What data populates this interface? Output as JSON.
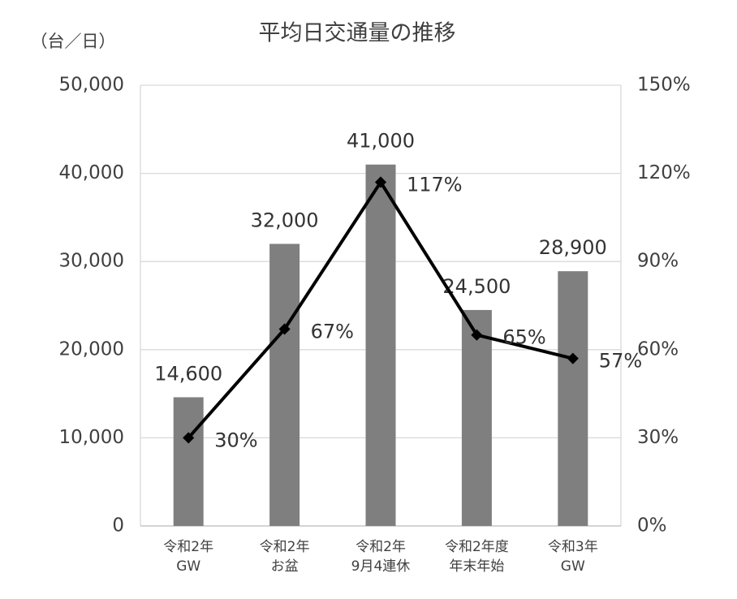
{
  "chart_data": {
    "type": "bar",
    "title": "平均日交通量の推移",
    "y_label": "（台／日）",
    "categories": [
      [
        "令和2年",
        "GW"
      ],
      [
        "令和2年",
        "お盆"
      ],
      [
        "令和2年",
        "9月4連休"
      ],
      [
        "令和2年度",
        "年末年始"
      ],
      [
        "令和3年",
        "GW"
      ]
    ],
    "series": [
      {
        "type": "bar",
        "color": "#7f7f7f",
        "values": [
          14600,
          32000,
          41000,
          24500,
          28900
        ],
        "value_labels": [
          "14,600",
          "32,000",
          "41,000",
          "24,500",
          "28,900"
        ]
      },
      {
        "type": "line",
        "axis": "y2",
        "color": "#000000",
        "values": [
          30,
          67,
          117,
          65,
          57
        ],
        "value_labels": [
          "30%",
          "67%",
          "117%",
          "65%",
          "57%"
        ]
      }
    ],
    "ylim": [
      0,
      50000
    ],
    "yticks": [
      0,
      {
        "value": 10000,
        "label": "10,000"
      },
      {
        "value": 20000,
        "label": "20,000"
      },
      {
        "value": 30000,
        "label": "30,000"
      },
      {
        "value": 40000,
        "label": "40,000"
      },
      {
        "value": 50000,
        "label": "50,000"
      }
    ],
    "y2lim": [
      0,
      150
    ],
    "y2ticks": [
      {
        "value": 0,
        "label": "0%"
      },
      {
        "value": 30,
        "label": "30%"
      },
      {
        "value": 60,
        "label": "60%"
      },
      {
        "value": 90,
        "label": "90%"
      },
      {
        "value": 120,
        "label": "120%"
      },
      {
        "value": 150,
        "label": "150%"
      }
    ],
    "grid": true
  }
}
